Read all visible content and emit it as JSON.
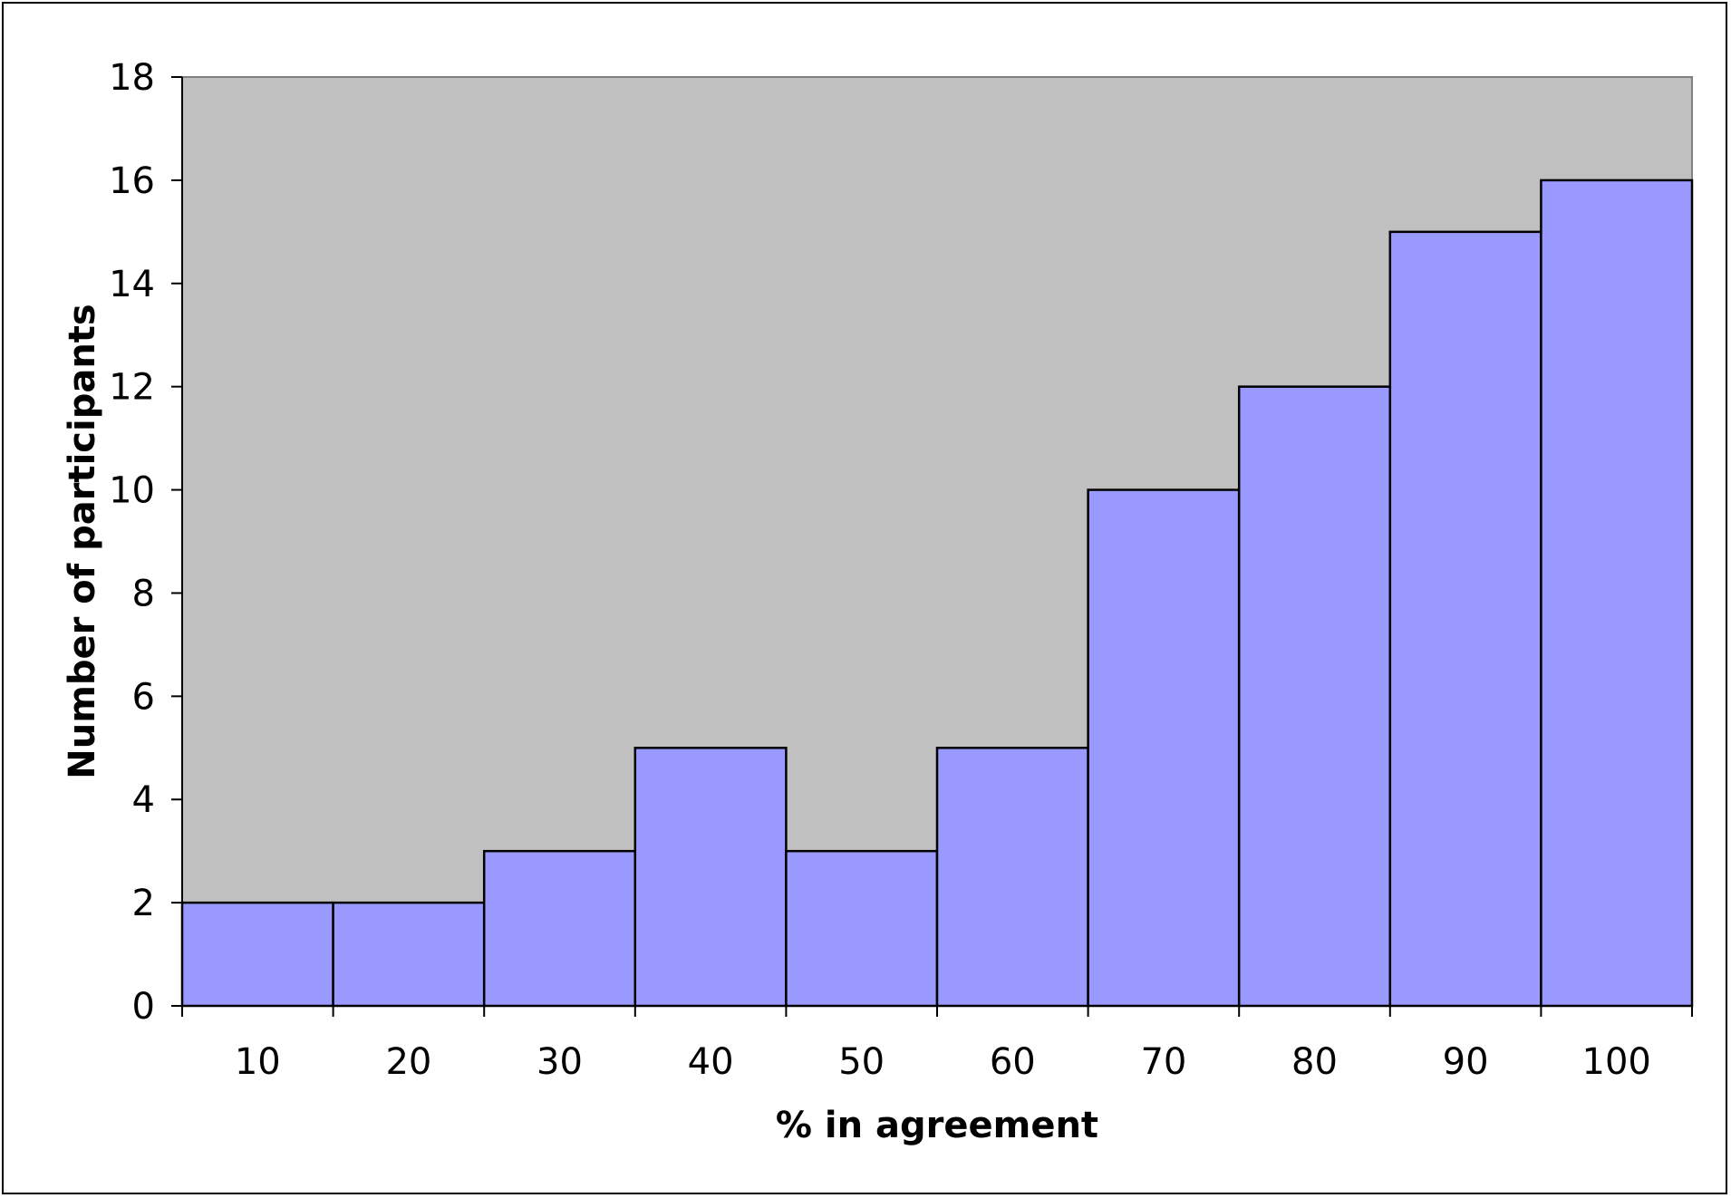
{
  "chart_data": {
    "type": "bar",
    "categories": [
      "10",
      "20",
      "30",
      "40",
      "50",
      "60",
      "70",
      "80",
      "90",
      "100"
    ],
    "values": [
      2,
      2,
      3,
      5,
      3,
      5,
      10,
      12,
      15,
      16
    ],
    "title": "",
    "xlabel": "% in agreement",
    "ylabel": "Number of participants",
    "ylim": [
      0,
      18
    ],
    "yticks": [
      "0",
      "2",
      "4",
      "6",
      "8",
      "10",
      "12",
      "14",
      "16",
      "18"
    ],
    "grid": false,
    "legend": "none",
    "colors": {
      "plot_background": "#c0c0c0",
      "bar_fill": "#9999ff",
      "bar_stroke": "#000000",
      "axis": "#000000",
      "plot_border": "#808080"
    }
  }
}
